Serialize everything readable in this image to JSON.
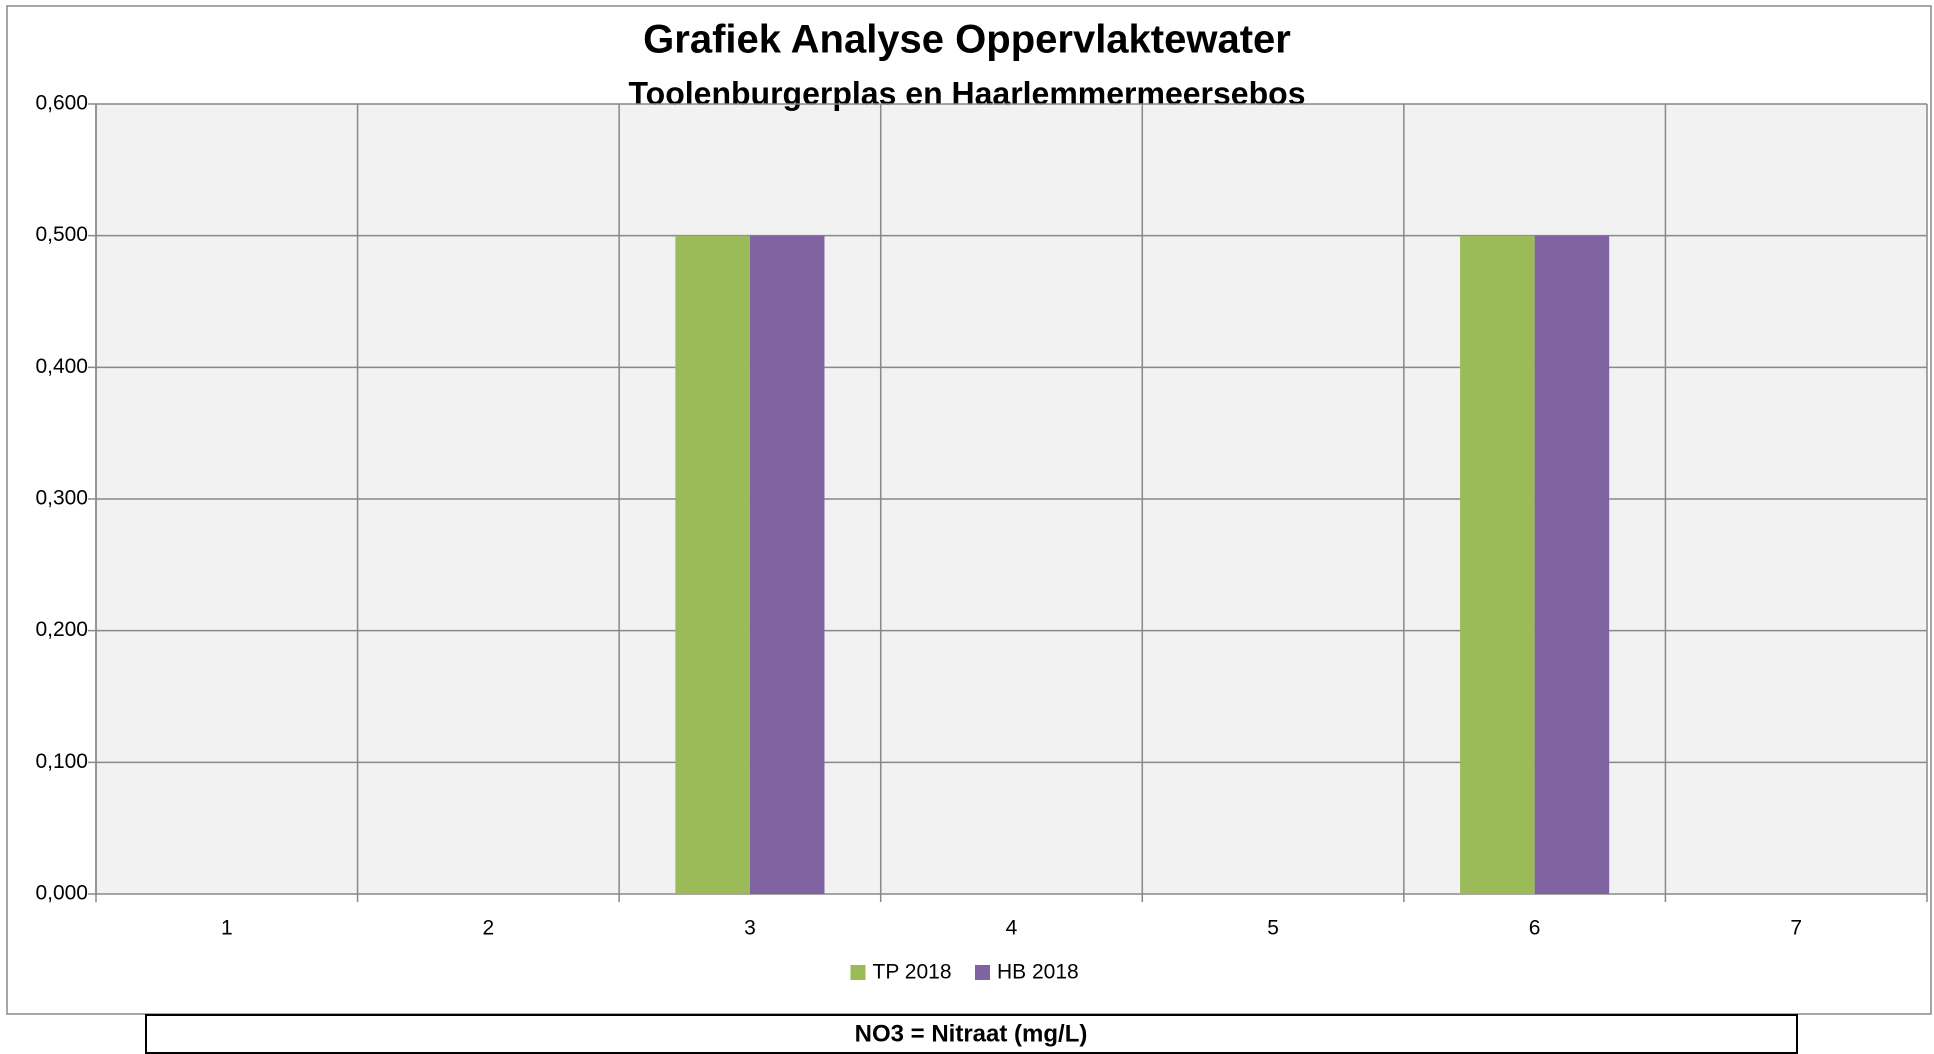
{
  "chart_data": {
    "type": "bar",
    "title": "Grafiek Analyse Oppervlaktewater",
    "subtitle": "Toolenburgerplas en Haarlemmermeersebos",
    "categories": [
      "1",
      "2",
      "3",
      "4",
      "5",
      "6",
      "7"
    ],
    "series": [
      {
        "name": "TP 2018",
        "color": "#9bbb59",
        "values": [
          null,
          null,
          0.5,
          null,
          null,
          0.5,
          null
        ]
      },
      {
        "name": "HB 2018",
        "color": "#8064a2",
        "values": [
          null,
          null,
          0.5,
          null,
          null,
          0.5,
          null
        ]
      }
    ],
    "ylim": [
      0,
      0.6
    ],
    "yticks": [
      {
        "value": 0,
        "label": "0,000"
      },
      {
        "value": 0.1,
        "label": "0,100"
      },
      {
        "value": 0.2,
        "label": "0,200"
      },
      {
        "value": 0.3,
        "label": "0,300"
      },
      {
        "value": 0.4,
        "label": "0,400"
      },
      {
        "value": 0.5,
        "label": "0,500"
      },
      {
        "value": 0.6,
        "label": "0,600"
      }
    ],
    "grid": true,
    "legend": "bottom",
    "note": "NO3 = Nitraat (mg/L)"
  }
}
